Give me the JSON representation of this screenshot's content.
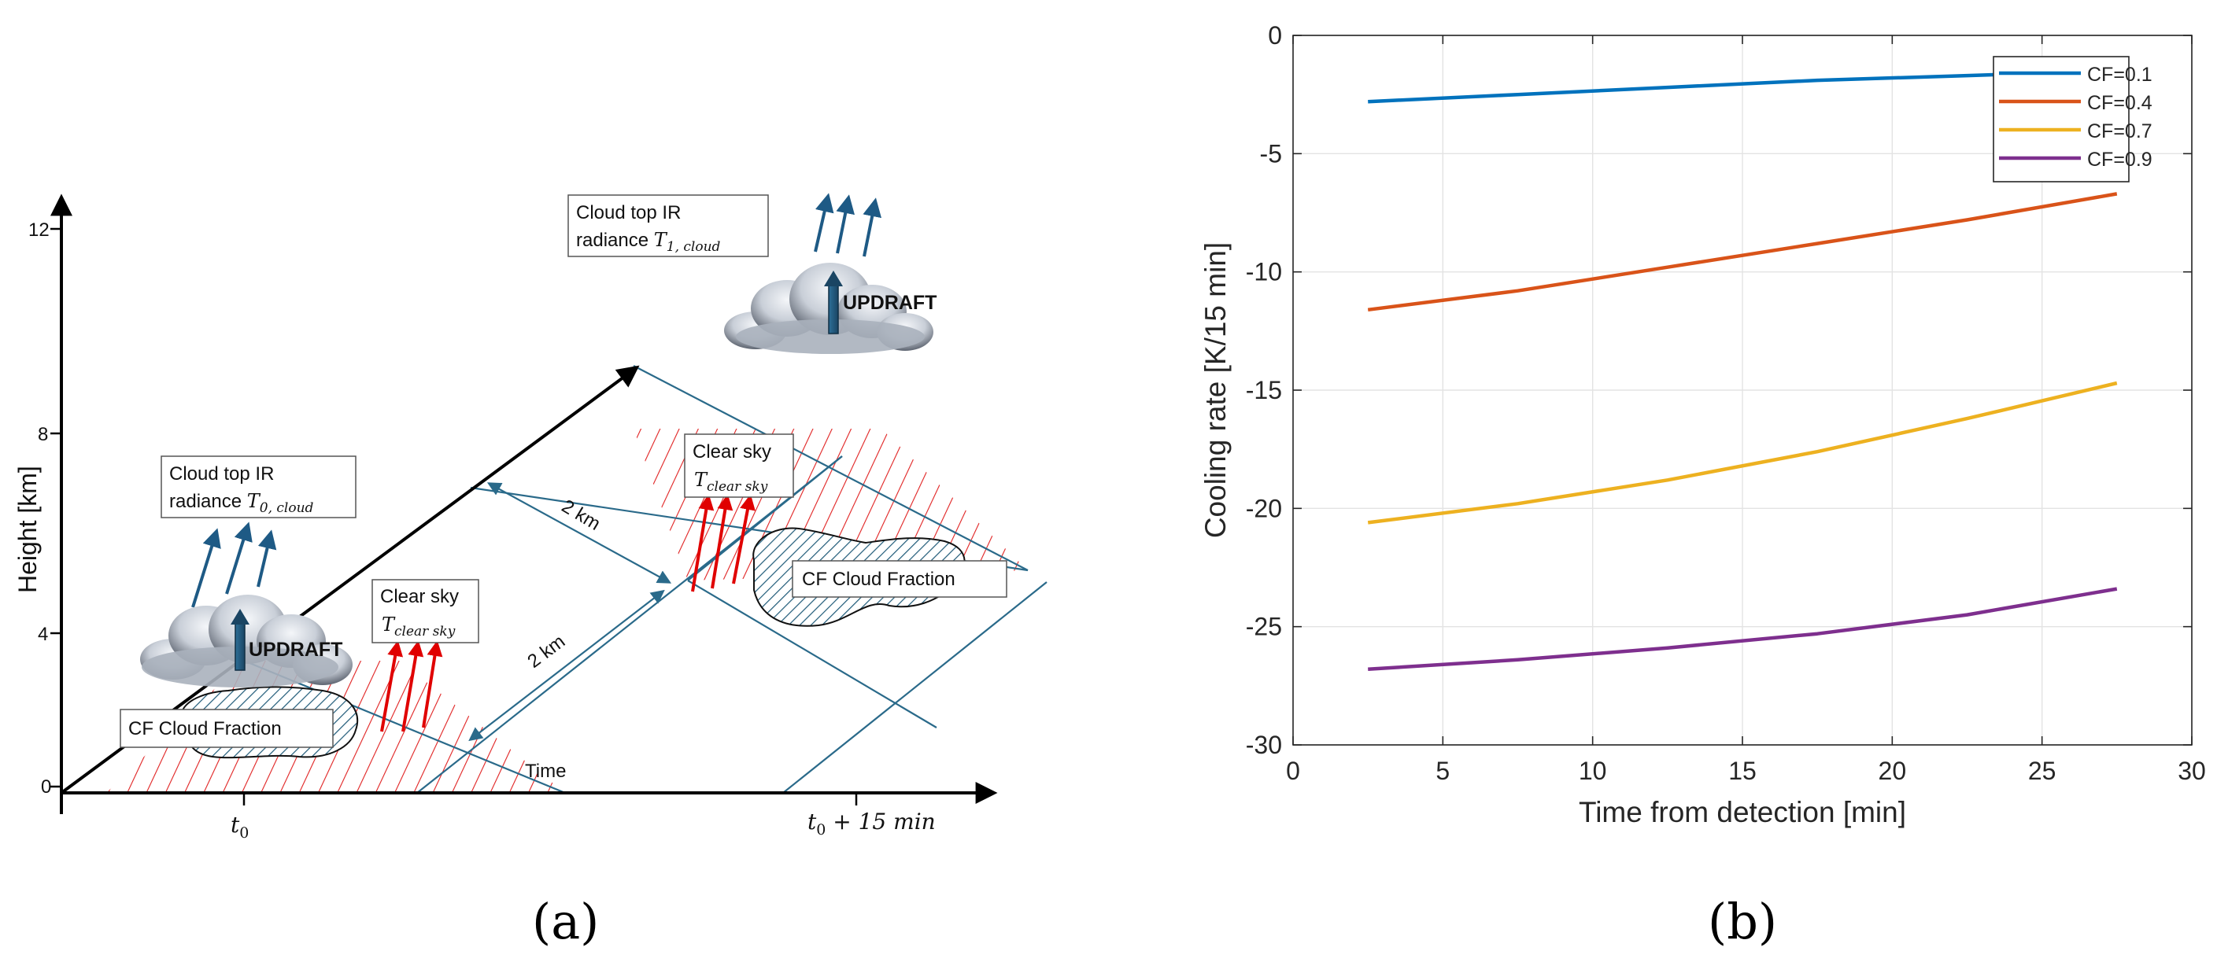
{
  "panel_labels": {
    "a": "(a)",
    "b": "(b)"
  },
  "diagram": {
    "y_axis_label": "Height [km]",
    "y_ticks": [
      "0",
      "4",
      "8",
      "12"
    ],
    "t0_label": "t",
    "t0_sub": "0",
    "t15_label": "t",
    "t15_sub": "0",
    "t15_suffix": " + 15 min",
    "time_label": "Time",
    "dist1": "2 km",
    "dist2": "2 km",
    "cloud0_box_line1": "Cloud top IR",
    "cloud0_box_line2": "radiance ",
    "cloud0_T": "T",
    "cloud0_sub": "0, cloud",
    "cloud1_box_line1": "Cloud top IR",
    "cloud1_box_line2": "radiance ",
    "cloud1_T": "T",
    "cloud1_sub": "1, cloud",
    "clear1_line1": "Clear sky",
    "clear1_T": "T",
    "clear1_sub": "clear sky",
    "clear2_line1": "Clear sky",
    "clear2_T": "T",
    "clear2_sub": "clear sky",
    "cf1_label": "CF Cloud Fraction",
    "cf2_label": "CF Cloud Fraction",
    "updraft1": "UPDRAFT",
    "updraft2": "UPDRAFT"
  },
  "chart_data": {
    "type": "line",
    "title": "",
    "xlabel": "Time from detection [min]",
    "ylabel": "Cooling rate [K/15 min]",
    "xlim": [
      0,
      30
    ],
    "ylim": [
      -30,
      0
    ],
    "xticks": [
      0,
      5,
      10,
      15,
      20,
      25,
      30
    ],
    "yticks": [
      0,
      -5,
      -10,
      -15,
      -20,
      -25,
      -30
    ],
    "grid": true,
    "legend_position": "top-right",
    "x": [
      2.5,
      7.5,
      12.5,
      17.5,
      22.5,
      27.5
    ],
    "series": [
      {
        "name": "CF=0.1",
        "color": "#0072BD",
        "values": [
          -2.8,
          -2.5,
          -2.2,
          -1.9,
          -1.7,
          -1.5
        ]
      },
      {
        "name": "CF=0.4",
        "color": "#D95319",
        "values": [
          -11.6,
          -10.8,
          -9.8,
          -8.8,
          -7.8,
          -6.7
        ]
      },
      {
        "name": "CF=0.7",
        "color": "#EDB120",
        "values": [
          -20.6,
          -19.8,
          -18.8,
          -17.6,
          -16.2,
          -14.7
        ]
      },
      {
        "name": "CF=0.9",
        "color": "#7E2F8E",
        "values": [
          -26.8,
          -26.4,
          -25.9,
          -25.3,
          -24.5,
          -23.4
        ]
      }
    ]
  }
}
